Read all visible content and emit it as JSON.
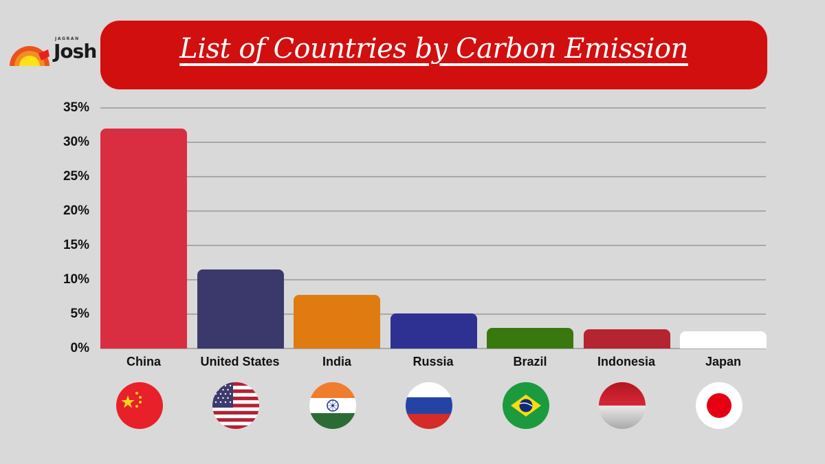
{
  "branding": {
    "logo_top": "JAGRAN",
    "logo_main": "Josh"
  },
  "header": {
    "title": "List of Countries by Carbon Emission"
  },
  "chart_data": {
    "type": "bar",
    "title": "List of Countries by Carbon Emission",
    "xlabel": "",
    "ylabel": "",
    "categories": [
      "China",
      "United States",
      "India",
      "Russia",
      "Brazil",
      "Indonesia",
      "Japan"
    ],
    "values": [
      32,
      11.5,
      7.8,
      5.1,
      3.0,
      2.8,
      2.5
    ],
    "unit": "%",
    "ylim": [
      0,
      35
    ],
    "yticks": [
      "0%",
      "5%",
      "10%",
      "15%",
      "20%",
      "25%",
      "30%",
      "35%"
    ],
    "grid": true,
    "legend": "none",
    "bar_colors": [
      "#d92e42",
      "#3b386c",
      "#e07b12",
      "#2e3192",
      "#39770f",
      "#b52431",
      "#ffffff"
    ]
  },
  "axis": {
    "yticks": [
      {
        "label": "35%",
        "value": 35
      },
      {
        "label": "30%",
        "value": 30
      },
      {
        "label": "25%",
        "value": 25
      },
      {
        "label": "20%",
        "value": 20
      },
      {
        "label": "15%",
        "value": 15
      },
      {
        "label": "10%",
        "value": 10
      },
      {
        "label": "5%",
        "value": 5
      },
      {
        "label": "0%",
        "value": 0
      }
    ]
  },
  "countries": [
    {
      "name": "China",
      "value": 32,
      "color": "#d92e42",
      "flag": "china-flag-icon"
    },
    {
      "name": "United States",
      "value": 11.5,
      "color": "#3b386c",
      "flag": "usa-flag-icon"
    },
    {
      "name": "India",
      "value": 7.8,
      "color": "#e07b12",
      "flag": "india-flag-icon"
    },
    {
      "name": "Russia",
      "value": 5.1,
      "color": "#2e3192",
      "flag": "russia-flag-icon"
    },
    {
      "name": "Brazil",
      "value": 3.0,
      "color": "#39770f",
      "flag": "brazil-flag-icon"
    },
    {
      "name": "Indonesia",
      "value": 2.8,
      "color": "#b52431",
      "flag": "indonesia-flag-icon"
    },
    {
      "name": "Japan",
      "value": 2.5,
      "color": "#ffffff",
      "flag": "japan-flag-icon"
    }
  ],
  "colors": {
    "background": "#d9d9d9",
    "banner": "#d10f0f",
    "grid": "#a8a8a8"
  }
}
